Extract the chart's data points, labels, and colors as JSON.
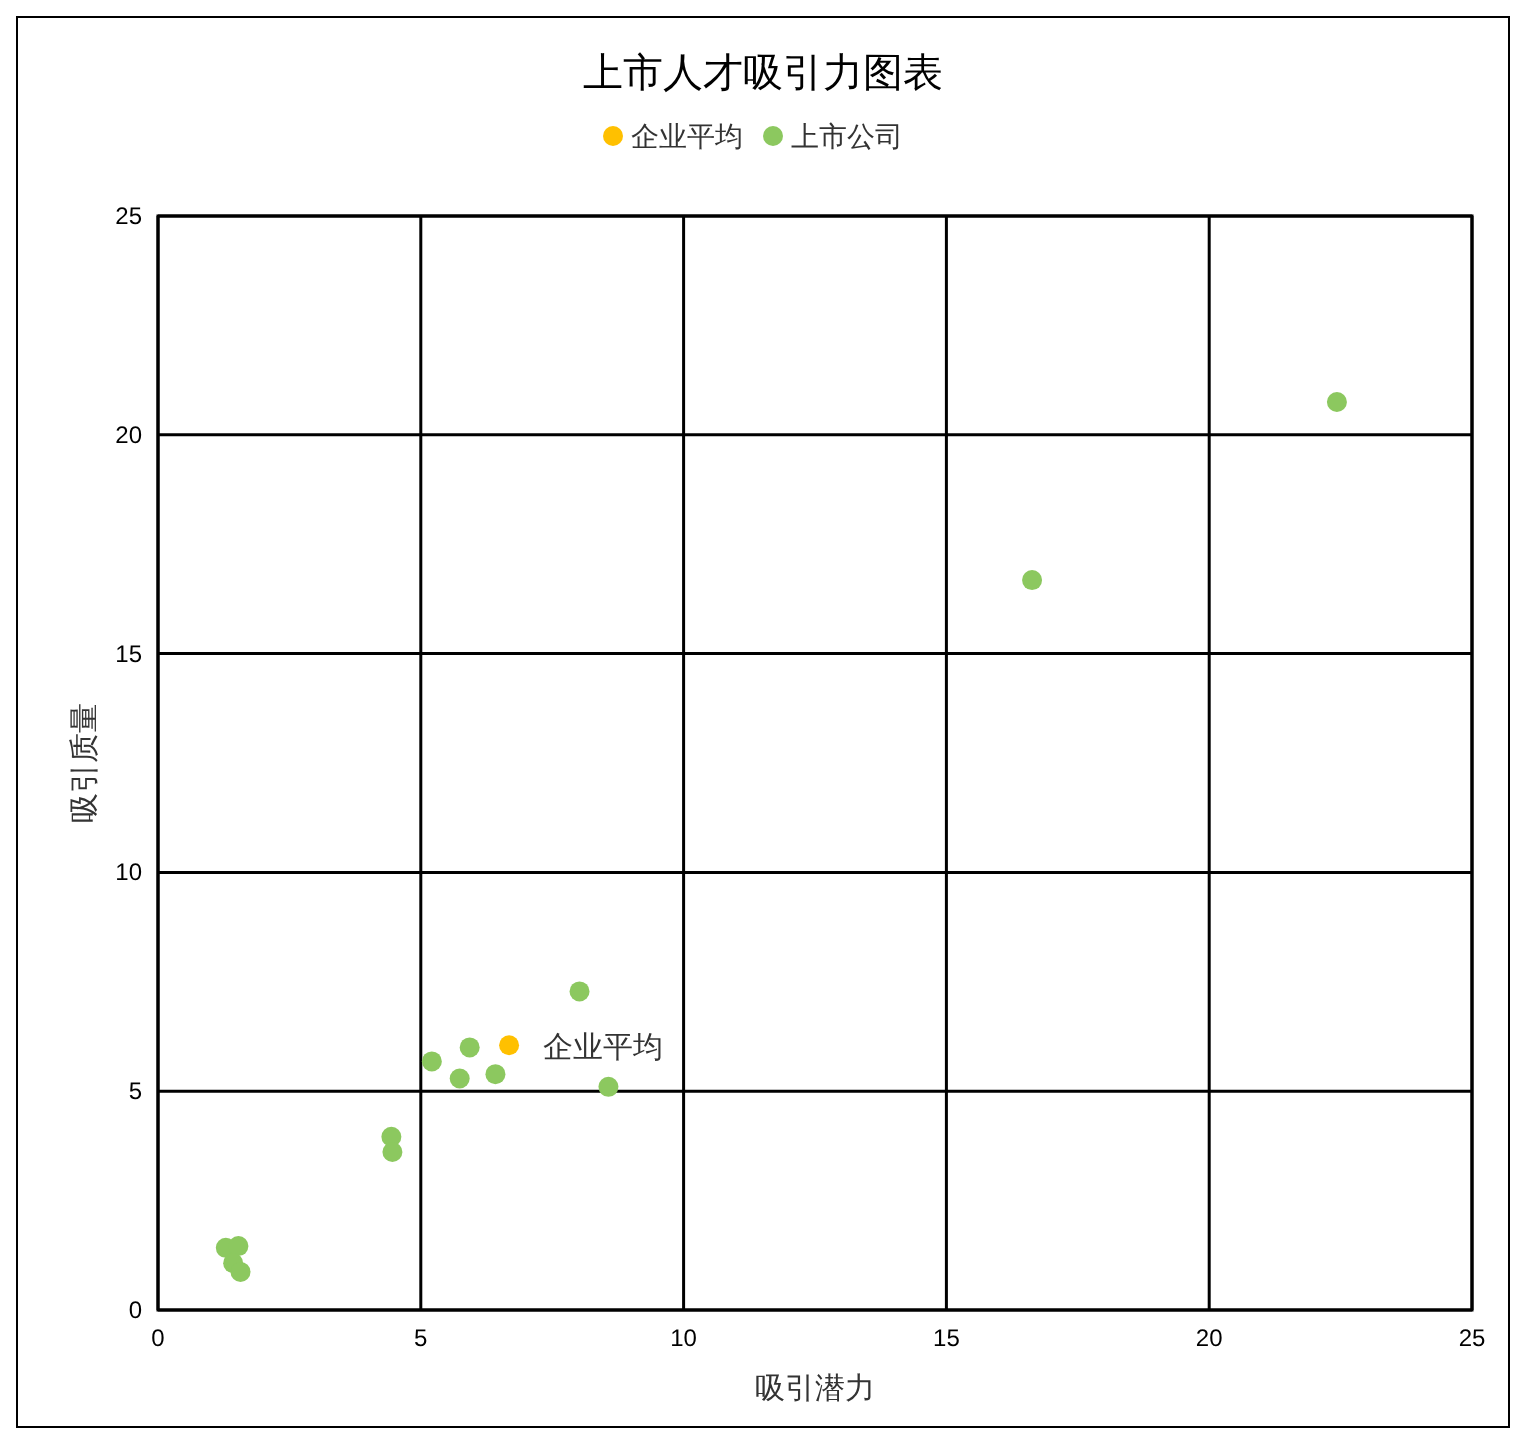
{
  "chart_data": {
    "type": "scatter",
    "title": "上市人才吸引力图表",
    "xlabel": "吸引潜力",
    "ylabel": "吸引质量",
    "xlim": [
      0,
      25
    ],
    "xticks": [
      0,
      5,
      10,
      15,
      20,
      25
    ],
    "ylim": [
      0,
      25
    ],
    "yticks": [
      0,
      5,
      10,
      15,
      20,
      25
    ],
    "grid": true,
    "legend": "top",
    "marker": "circle",
    "series": [
      {
        "name": "企业平均",
        "color": "#ffc000",
        "x": [
          6.68
        ],
        "values": [
          6.05
        ]
      },
      {
        "name": "上市公司",
        "color": "#8cc85f",
        "x": [
          8.02,
          5.21,
          5.93,
          5.74,
          6.42,
          8.57,
          4.44,
          4.46,
          1.29,
          1.53,
          1.43,
          1.57,
          16.63,
          22.43
        ],
        "values": [
          7.28,
          5.68,
          6.0,
          5.29,
          5.39,
          5.1,
          3.96,
          3.61,
          1.42,
          1.46,
          1.07,
          0.87,
          16.68,
          20.75
        ]
      }
    ],
    "annotations": [
      {
        "text": "企业平均",
        "x": 6.68,
        "y": 6.05
      }
    ]
  }
}
